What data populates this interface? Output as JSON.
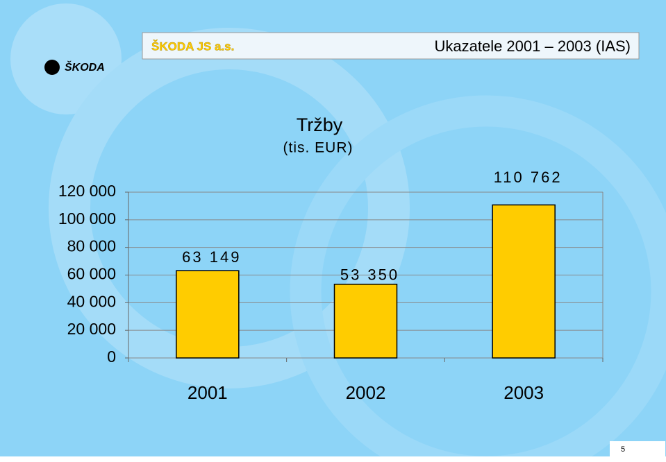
{
  "header": {
    "company": "ŠKODA JS a.s.",
    "title": "Ukazatele 2001 – 2003 (IAS)"
  },
  "logo": "ŠKODA",
  "page_number": 5,
  "chart_data": {
    "type": "bar",
    "title": "Tržby",
    "subtitle": "(tis. EUR)",
    "categories": [
      "2001",
      "2002",
      "2003"
    ],
    "values": [
      63149,
      53350,
      110762
    ],
    "value_labels": [
      "63 149",
      "53 350",
      "110 762"
    ],
    "color": "#ffcc00",
    "ylim": [
      0,
      120000
    ],
    "yticks": [
      {
        "value": 0,
        "label": "0"
      },
      {
        "value": 20000,
        "label": "20 000"
      },
      {
        "value": 40000,
        "label": "40 000"
      },
      {
        "value": 60000,
        "label": "60 000"
      },
      {
        "value": 80000,
        "label": "80 000"
      },
      {
        "value": 100000,
        "label": "100 000"
      },
      {
        "value": 120000,
        "label": "120 000"
      }
    ],
    "grid": true
  }
}
